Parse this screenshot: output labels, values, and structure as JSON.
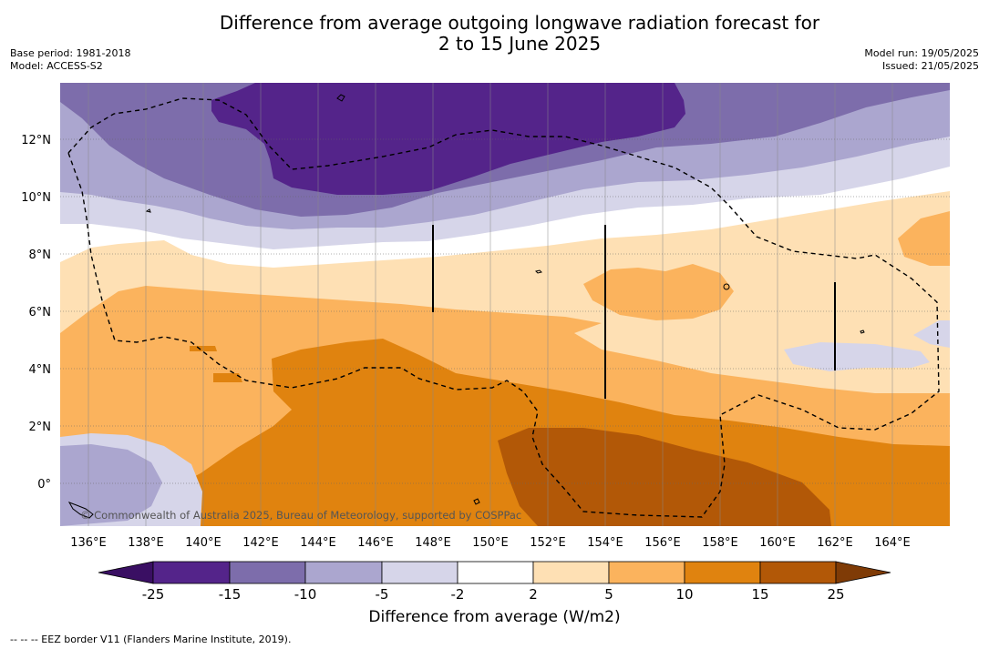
{
  "title_line1": "Difference from average outgoing longwave radiation forecast for",
  "title_line2": "2 to 15 June 2025",
  "meta_left": {
    "base_period": "Base period: 1981-2018",
    "model": "Model: ACCESS-S2"
  },
  "meta_right": {
    "model_run": "Model run: 19/05/2025",
    "issued": "Issued: 21/05/2025"
  },
  "map": {
    "lon_labels": [
      "136°E",
      "138°E",
      "140°E",
      "142°E",
      "144°E",
      "146°E",
      "148°E",
      "150°E",
      "152°E",
      "154°E",
      "156°E",
      "158°E",
      "160°E",
      "162°E",
      "164°E"
    ],
    "lat_labels": [
      "12°N",
      "10°N",
      "8°N",
      "6°N",
      "4°N",
      "2°N",
      "0°"
    ],
    "copyright": "© Commonwealth of Australia 2025, Bureau of Meteorology, supported by COSPPac",
    "colors": {
      "neg25": "#54248a",
      "neg15": "#7d6dab",
      "neg10": "#aba6cf",
      "neg5": "#d6d5e9",
      "neutral": "#ffffff",
      "pos2": "#fee0b4",
      "pos5": "#fbb35d",
      "pos10": "#e0830f",
      "pos15": "#b25807"
    }
  },
  "colorbar": {
    "ticks": [
      "-25",
      "-15",
      "-10",
      "-5",
      "-2",
      "2",
      "5",
      "10",
      "15",
      "25"
    ],
    "colors": [
      "#54248a",
      "#7d6dab",
      "#aba6cf",
      "#d6d5e9",
      "#ffffff",
      "#fee0b4",
      "#fbb35d",
      "#e0830f",
      "#b25807"
    ],
    "min_color": "#3a0f63",
    "max_color": "#7f3b06",
    "label": "Difference from average (W/m2)"
  },
  "footnote": "-- -- -- EEZ border V11 (Flanders Marine Institute, 2019)."
}
